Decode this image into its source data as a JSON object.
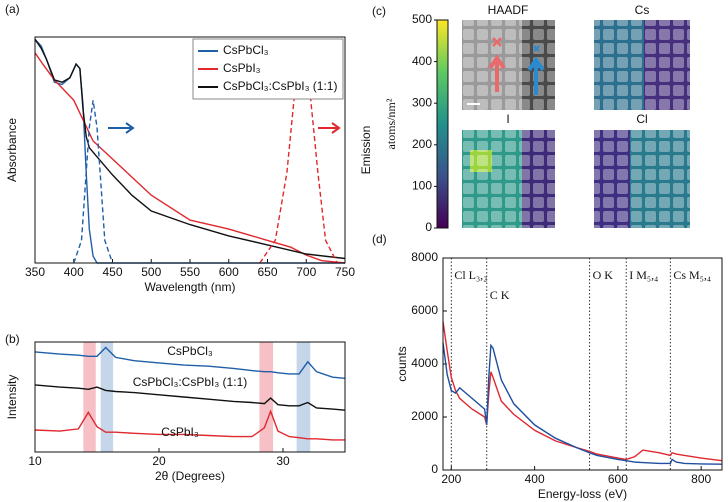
{
  "chart_data": [
    {
      "type": "line",
      "panel_label": "(a)",
      "xlabel": "Wavelength (nm)",
      "ylabel": "Absorbance",
      "y2label": "Emission",
      "xlim": [
        350,
        750
      ],
      "xticks": [
        350,
        400,
        450,
        500,
        550,
        600,
        650,
        700,
        750
      ],
      "ylim": [
        0,
        1
      ],
      "legend": "upper right",
      "series": [
        {
          "name": "CsPbCl₃",
          "color": "#1f5fa8",
          "x": [
            350,
            358,
            365,
            375,
            385,
            395,
            403,
            408,
            412,
            416,
            420,
            425,
            430,
            750
          ],
          "values": [
            0.99,
            0.96,
            0.9,
            0.8,
            0.79,
            0.82,
            0.88,
            0.86,
            0.7,
            0.4,
            0.15,
            0.03,
            0,
            0
          ]
        },
        {
          "name": "CsPbI₃",
          "color": "#e0282e",
          "x": [
            350,
            360,
            375,
            400,
            425,
            450,
            475,
            500,
            550,
            600,
            650,
            680,
            700,
            720,
            750
          ],
          "values": [
            0.93,
            0.88,
            0.81,
            0.72,
            0.54,
            0.46,
            0.38,
            0.3,
            0.19,
            0.15,
            0.1,
            0.07,
            0.035,
            0.01,
            0
          ]
        },
        {
          "name": "CsPbCl₃:CsPbI₃ (1:1)",
          "color": "#111111",
          "x": [
            350,
            358,
            365,
            375,
            385,
            395,
            403,
            408,
            412,
            416,
            420,
            430,
            450,
            475,
            500,
            550,
            600,
            650,
            700,
            750
          ],
          "values": [
            0.99,
            0.95,
            0.9,
            0.81,
            0.8,
            0.82,
            0.88,
            0.86,
            0.68,
            0.56,
            0.51,
            0.47,
            0.39,
            0.3,
            0.23,
            0.17,
            0.12,
            0.08,
            0.04,
            0.02
          ]
        },
        {
          "color": "#1f5fa8",
          "dash": true,
          "x": [
            400,
            410,
            415,
            420,
            425,
            430,
            435,
            440,
            450
          ],
          "values": [
            0,
            0.1,
            0.35,
            0.6,
            0.72,
            0.6,
            0.35,
            0.1,
            0
          ]
        },
        {
          "color": "#e0282e",
          "dash": true,
          "x": [
            640,
            660,
            675,
            685,
            695,
            705,
            715,
            725,
            740
          ],
          "values": [
            0,
            0.1,
            0.4,
            0.75,
            0.9,
            0.75,
            0.4,
            0.1,
            0
          ]
        }
      ]
    },
    {
      "type": "line",
      "panel_label": "(b)",
      "xlabel": "2θ (Degrees)",
      "ylabel": "Intensity",
      "xlim": [
        10,
        35
      ],
      "xticks": [
        10,
        20,
        30
      ],
      "ylim": [
        0,
        10
      ],
      "series_labels": true,
      "bands": [
        {
          "x": [
            13.9,
            14.9
          ],
          "color": "#f6c0c6"
        },
        {
          "x": [
            15.3,
            16.3
          ],
          "color": "#c5d5ea"
        },
        {
          "x": [
            28.1,
            29.2
          ],
          "color": "#f6c0c6"
        },
        {
          "x": [
            31.1,
            32.2
          ],
          "color": "#c5d5ea"
        }
      ],
      "x": [
        10,
        12,
        13.5,
        14.3,
        15,
        15.7,
        16.5,
        18,
        20,
        22,
        24,
        26,
        27.5,
        28.5,
        29,
        29.6,
        30.5,
        31.3,
        32,
        32.7,
        34,
        35
      ],
      "series": [
        {
          "name": "CsPbCl₃",
          "color": "#1f5fa8",
          "values": [
            9.1,
            8.9,
            8.8,
            8.7,
            8.7,
            9.5,
            8.6,
            8.3,
            8.1,
            7.9,
            7.8,
            7.6,
            7.4,
            7.3,
            7.3,
            7.2,
            7.1,
            7.1,
            8.2,
            7.3,
            6.8,
            6.7
          ]
        },
        {
          "name": "CsPbCl₃:CsPbI₃ (1:1)",
          "color": "#111111",
          "values": [
            6.1,
            5.9,
            5.8,
            5.7,
            5.9,
            5.6,
            5.5,
            5.4,
            5.2,
            5.0,
            4.8,
            4.6,
            4.5,
            4.4,
            4.9,
            4.3,
            4.2,
            4.2,
            4.5,
            4.0,
            3.9,
            3.8
          ]
        },
        {
          "name": "CsPbI₃",
          "color": "#e0282e",
          "values": [
            2.0,
            1.9,
            2.1,
            3.6,
            2.3,
            1.8,
            1.8,
            1.7,
            1.6,
            1.6,
            1.5,
            1.4,
            1.4,
            2.2,
            3.7,
            1.9,
            1.4,
            1.3,
            1.2,
            1.2,
            1.1,
            1.1
          ]
        }
      ]
    },
    {
      "type": "colorbar",
      "panel_label": "(c)",
      "ylabel": "atoms/nm²",
      "ylim": [
        0,
        500
      ],
      "yticks": [
        0,
        100,
        200,
        300,
        400,
        500
      ],
      "panels": [
        "HAADF",
        "Cs",
        "I",
        "Cl"
      ]
    },
    {
      "type": "line",
      "panel_label": "(d)",
      "xlabel": "Energy-loss (eV)",
      "ylabel": "counts",
      "xlim": [
        180,
        850
      ],
      "xticks": [
        200,
        400,
        600,
        800
      ],
      "ylim": [
        0,
        8000
      ],
      "yticks": [
        0,
        2000,
        4000,
        6000,
        8000
      ],
      "edges": [
        {
          "value": 200,
          "label": "Cl L₃,₂"
        },
        {
          "value": 285,
          "label": "C K"
        },
        {
          "value": 532,
          "label": "O K"
        },
        {
          "value": 620,
          "label": "I M₅,₄"
        },
        {
          "value": 726,
          "label": "Cs M₅,₄"
        }
      ],
      "x": [
        180,
        190,
        200,
        210,
        220,
        250,
        280,
        285,
        290,
        295,
        300,
        320,
        350,
        400,
        450,
        500,
        532,
        550,
        600,
        620,
        640,
        660,
        700,
        726,
        730,
        740,
        760,
        800,
        850
      ],
      "series": [
        {
          "color": "#e0282e",
          "values": [
            5600,
            4500,
            3500,
            3000,
            2700,
            2300,
            2000,
            1700,
            2900,
            3700,
            3500,
            2600,
            2100,
            1500,
            1100,
            850,
            700,
            600,
            450,
            400,
            500,
            750,
            650,
            550,
            650,
            600,
            550,
            450,
            350
          ]
        },
        {
          "color": "#1f4fa0",
          "values": [
            4800,
            3600,
            3000,
            2900,
            3100,
            2700,
            2300,
            1700,
            3500,
            4700,
            4600,
            3400,
            2500,
            1700,
            1200,
            850,
            650,
            550,
            400,
            350,
            300,
            280,
            250,
            250,
            400,
            300,
            250,
            230,
            220
          ]
        }
      ]
    }
  ]
}
